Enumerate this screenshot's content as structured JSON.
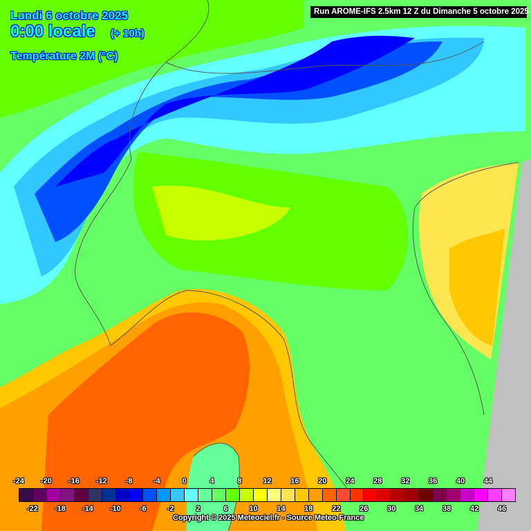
{
  "header": {
    "date": "Lundi 6 octobre 2025",
    "time": "0:00 locale",
    "lead": "(+ 10h)",
    "parameter": "Température 2M (°C)",
    "run": "Run AROME-IFS 2.5km 12 Z du Dimanche 5 octobre 2025"
  },
  "legend": {
    "values": [
      -24,
      -22,
      -20,
      -18,
      -16,
      -14,
      -12,
      -10,
      -8,
      -6,
      -4,
      -2,
      0,
      2,
      4,
      6,
      8,
      10,
      12,
      14,
      16,
      18,
      20,
      22,
      24,
      26,
      28,
      30,
      32,
      34,
      36,
      38,
      40,
      42,
      44,
      46
    ],
    "colors": [
      "#3c0a46",
      "#640064",
      "#a000a0",
      "#821482",
      "#640040",
      "#323264",
      "#003296",
      "#0000c8",
      "#0000ff",
      "#0050ff",
      "#0096ff",
      "#32c8ff",
      "#64ffff",
      "#64ff96",
      "#64ff64",
      "#64ff00",
      "#c8ff00",
      "#ffff00",
      "#ffff80",
      "#ffe650",
      "#ffc800",
      "#ffa000",
      "#ff6400",
      "#ff4b32",
      "#ff3200",
      "#ff0000",
      "#dc0000",
      "#b40000",
      "#a00000",
      "#6e0000",
      "#800050",
      "#a0006e",
      "#c800c8",
      "#ff00ff",
      "#ff40ff",
      "#ff80ff"
    ]
  },
  "copyright": "Copyright © 2025 Meteociel.fr - Source Meteo-France",
  "map_colors": {
    "no_data": "#c0c0c0",
    "border": "#555555"
  }
}
